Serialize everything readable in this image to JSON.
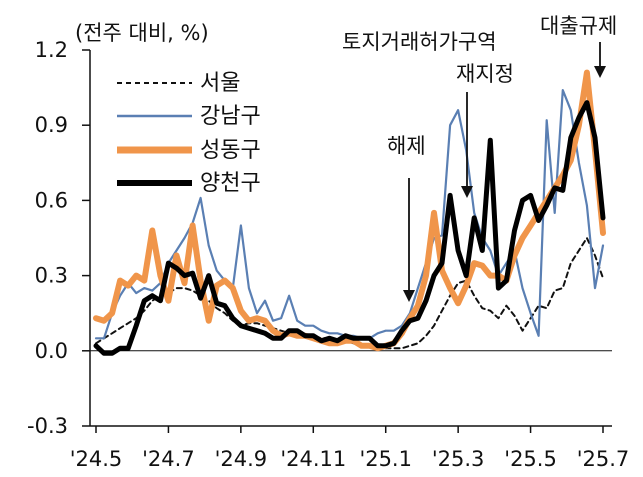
{
  "chart_data": {
    "type": "line",
    "title": "(전주 대비, %)",
    "xlabel": "",
    "ylabel": "",
    "ylim": [
      -0.3,
      1.2
    ],
    "y_ticks": [
      "1.2",
      "0.9",
      "0.6",
      "0.3",
      "0.0",
      "-0.3"
    ],
    "y_tick_values": [
      1.2,
      0.9,
      0.6,
      0.3,
      0.0,
      -0.3
    ],
    "x_tick_labels": [
      "'24.5",
      "'24.7",
      "'24.9",
      "'24.11",
      "'25.1",
      "'25.3",
      "'25.5",
      "'25.7"
    ],
    "x_tick_index": [
      0,
      9,
      18,
      27,
      36,
      45,
      54,
      63
    ],
    "legend_position": "top-left",
    "series": [
      {
        "name": "서울",
        "color": "#111111",
        "style": "dashed",
        "values": [
          0.03,
          0.05,
          0.07,
          0.09,
          0.11,
          0.13,
          0.16,
          0.2,
          0.22,
          0.23,
          0.25,
          0.25,
          0.24,
          0.22,
          0.2,
          0.17,
          0.15,
          0.12,
          0.1,
          0.11,
          0.11,
          0.1,
          0.09,
          0.08,
          0.07,
          0.07,
          0.06,
          0.06,
          0.05,
          0.05,
          0.04,
          0.04,
          0.03,
          0.02,
          0.02,
          0.02,
          0.01,
          0.01,
          0.01,
          0.02,
          0.03,
          0.06,
          0.1,
          0.16,
          0.22,
          0.27,
          0.28,
          0.22,
          0.17,
          0.16,
          0.13,
          0.18,
          0.14,
          0.08,
          0.13,
          0.18,
          0.17,
          0.24,
          0.25,
          0.35,
          0.4,
          0.45,
          0.38,
          0.29
        ]
      },
      {
        "name": "강남구",
        "color": "#5a7fb3",
        "style": "solid",
        "values": [
          0.05,
          0.05,
          0.15,
          0.22,
          0.27,
          0.23,
          0.25,
          0.24,
          0.27,
          0.35,
          0.4,
          0.45,
          0.51,
          0.61,
          0.42,
          0.32,
          0.28,
          0.25,
          0.5,
          0.25,
          0.15,
          0.2,
          0.12,
          0.13,
          0.22,
          0.12,
          0.1,
          0.1,
          0.08,
          0.07,
          0.07,
          0.06,
          0.06,
          0.05,
          0.05,
          0.07,
          0.08,
          0.08,
          0.1,
          0.15,
          0.25,
          0.35,
          0.45,
          0.46,
          0.9,
          0.96,
          0.8,
          0.55,
          0.45,
          0.4,
          0.3,
          0.35,
          0.4,
          0.25,
          0.15,
          0.06,
          0.92,
          0.55,
          1.04,
          0.96,
          0.75,
          0.58,
          0.25,
          0.42
        ]
      },
      {
        "name": "성동구",
        "color": "#f0954a",
        "style": "thick",
        "values": [
          0.13,
          0.12,
          0.15,
          0.28,
          0.26,
          0.3,
          0.28,
          0.48,
          0.3,
          0.2,
          0.38,
          0.27,
          0.5,
          0.28,
          0.12,
          0.26,
          0.28,
          0.25,
          0.16,
          0.12,
          0.13,
          0.12,
          0.08,
          0.06,
          0.07,
          0.06,
          0.06,
          0.05,
          0.04,
          0.03,
          0.03,
          0.04,
          0.04,
          0.02,
          0.02,
          0.01,
          0.02,
          0.03,
          0.07,
          0.13,
          0.18,
          0.3,
          0.55,
          0.32,
          0.25,
          0.19,
          0.26,
          0.35,
          0.34,
          0.3,
          0.3,
          0.28,
          0.38,
          0.45,
          0.5,
          0.55,
          0.6,
          0.65,
          0.7,
          0.76,
          0.9,
          1.11,
          0.8,
          0.47
        ]
      },
      {
        "name": "양천구",
        "color": "#000000",
        "style": "thick",
        "values": [
          0.02,
          -0.01,
          -0.01,
          0.01,
          0.01,
          0.1,
          0.2,
          0.22,
          0.2,
          0.35,
          0.33,
          0.3,
          0.31,
          0.21,
          0.3,
          0.19,
          0.18,
          0.13,
          0.1,
          0.09,
          0.08,
          0.07,
          0.05,
          0.05,
          0.08,
          0.08,
          0.06,
          0.06,
          0.04,
          0.05,
          0.04,
          0.06,
          0.05,
          0.05,
          0.05,
          0.02,
          0.02,
          0.03,
          0.08,
          0.12,
          0.13,
          0.2,
          0.3,
          0.35,
          0.62,
          0.4,
          0.3,
          0.53,
          0.4,
          0.84,
          0.25,
          0.28,
          0.48,
          0.6,
          0.62,
          0.52,
          0.58,
          0.65,
          0.64,
          0.85,
          0.93,
          0.99,
          0.85,
          0.53
        ]
      }
    ],
    "annotations": [
      {
        "label": "토지거래허가구역",
        "index": 44
      },
      {
        "label": "재지정",
        "index": 44
      },
      {
        "label": "해제",
        "index": 37
      },
      {
        "label": "대출규제",
        "index": 61
      }
    ]
  }
}
